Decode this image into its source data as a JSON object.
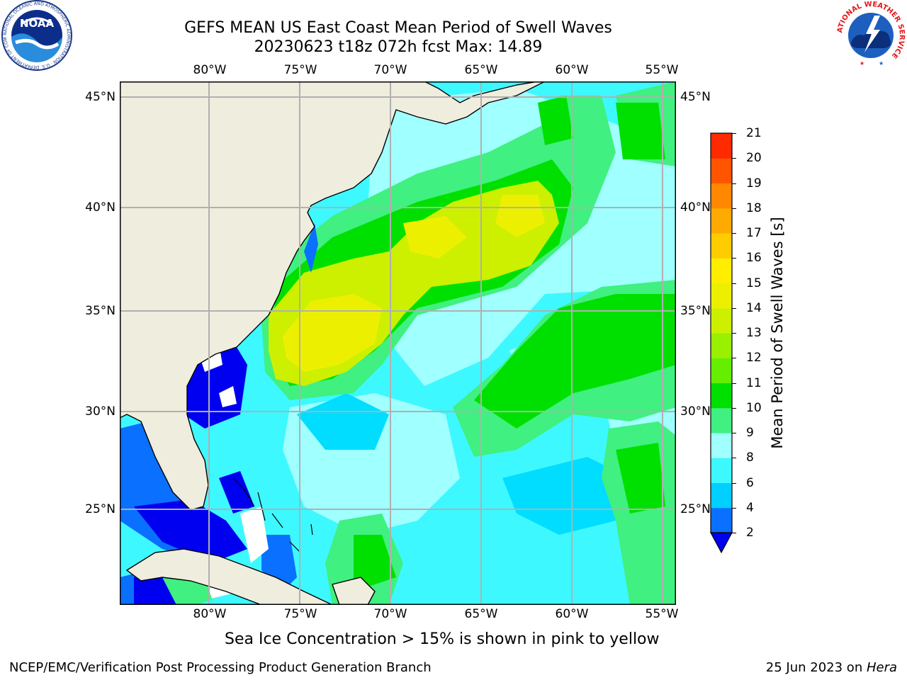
{
  "header": {
    "title_line1": "GEFS MEAN US East Coast Mean Period of Swell Waves",
    "title_line2": "20230623 t18z 072h fcst   Max: 14.89"
  },
  "logos": {
    "noaa_text": "NOAA",
    "noaa_ring_text": "NATIONAL OCEANIC AND ATMOSPHERIC ADMINISTRATION · U.S. DEPARTMENT OF COMMERCE",
    "nws_ring_text": "NATIONAL WEATHER SERVICE"
  },
  "map": {
    "lon_labels": [
      "80°W",
      "75°W",
      "70°W",
      "65°W",
      "60°W",
      "55°W"
    ],
    "lat_labels": [
      "45°N",
      "40°N",
      "35°N",
      "30°N",
      "25°N"
    ],
    "colors": {
      "land": "#efedde",
      "ocean_base": "#3ef8ff",
      "grid": "#b0b0b0"
    }
  },
  "colorbar": {
    "label": "Mean Period of Swell Waves [s]",
    "ticks": [
      "2",
      "4",
      "6",
      "8",
      "9",
      "10",
      "11",
      "12",
      "13",
      "14",
      "15",
      "16",
      "17",
      "18",
      "19",
      "20",
      "21"
    ],
    "colors": [
      "#0a70ff",
      "#00d0ff",
      "#3ef8ff",
      "#a0ffff",
      "#40f080",
      "#00e000",
      "#66ee00",
      "#99f000",
      "#ccf000",
      "#ecf000",
      "#ffee00",
      "#ffcc00",
      "#ffaa00",
      "#ff8800",
      "#ff5500",
      "#ff2a00"
    ],
    "underflow_color": "#0000f0"
  },
  "footer": {
    "note": "Sea Ice Concentration > 15% is shown in pink to yellow",
    "credit": "NCEP/EMC/Verification Post Processing Product Generation Branch",
    "date": "25 Jun 2023 on ",
    "machine": "Hera"
  }
}
